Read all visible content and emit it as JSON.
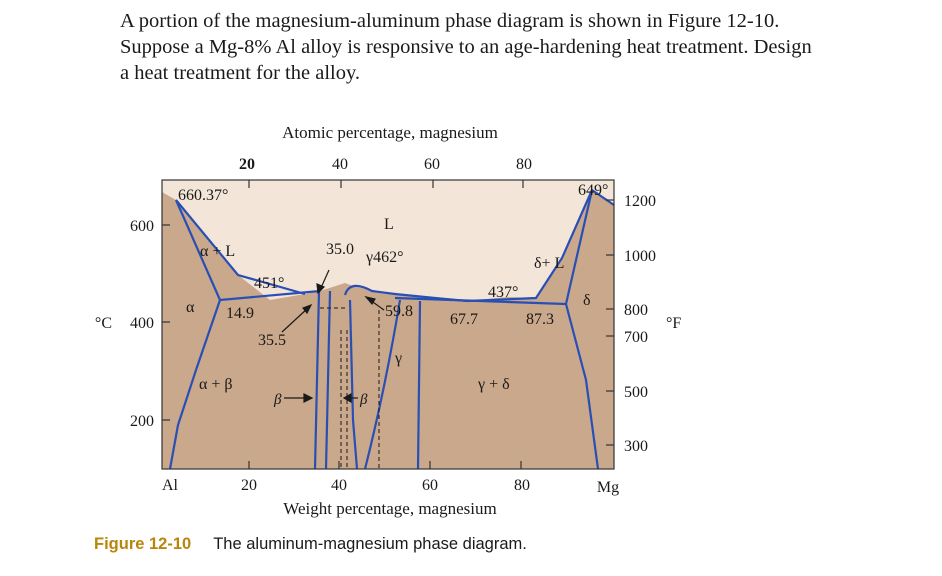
{
  "question": {
    "line1": "A portion of the magnesium-aluminum phase diagram is shown in Figure 12-10.",
    "line2": "Suppose a Mg-8% Al alloy is responsive to an age-hardening heat treatment. Design",
    "line3": "a heat treatment for the alloy."
  },
  "diagram": {
    "top_axis_title": "Atomic percentage, magnesium",
    "top_ticks": [
      "20",
      "40",
      "60",
      "80"
    ],
    "bottom_axis_title": "Weight percentage, magnesium",
    "bottom_ticks": [
      "Al",
      "20",
      "40",
      "60",
      "80",
      "Mg"
    ],
    "left_unit": "°C",
    "left_ticks": [
      "600",
      "400",
      "200"
    ],
    "right_unit": "°F",
    "right_ticks": [
      "1200",
      "1000",
      "800",
      "700",
      "500",
      "300"
    ],
    "labels": {
      "al_melt": "660.37°",
      "mg_melt": "649°",
      "liquid": "L",
      "alpha_liquid": "α + L",
      "delta_liquid": "δ+ L",
      "alpha": "α",
      "delta": "δ",
      "gamma": "γ",
      "alpha_beta": "α + β",
      "gamma_delta": "γ + δ",
      "eutectic_451": "451°",
      "gamma_462": "γ462°",
      "eutectic_437": "437°",
      "c_35_0": "35.0",
      "c_14_9": "14.9",
      "c_35_5": "35.5",
      "c_59_8": "59.8",
      "c_67_7": "67.7",
      "c_87_3": "87.3",
      "beta_left": "β",
      "beta_right": "β"
    },
    "colors": {
      "liquid_region": "#f3e6d8",
      "solid_region": "#c9a88c",
      "boundary": "#2a4fb4"
    }
  },
  "caption": {
    "figure_label": "Figure 12-10",
    "text": "The aluminum-magnesium phase diagram."
  }
}
